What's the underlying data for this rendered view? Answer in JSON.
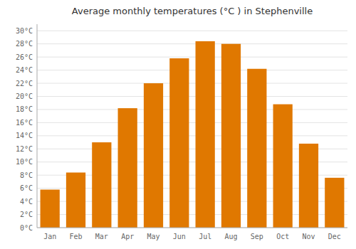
{
  "chart_data": {
    "type": "bar",
    "title": "Average monthly temperatures (°C ) in Stephenville",
    "categories": [
      "Jan",
      "Feb",
      "Mar",
      "Apr",
      "May",
      "Jun",
      "Jul",
      "Aug",
      "Sep",
      "Oct",
      "Nov",
      "Dec"
    ],
    "values": [
      5.8,
      8.4,
      13.0,
      18.2,
      22.0,
      25.8,
      28.4,
      28.0,
      24.2,
      18.8,
      12.8,
      7.6
    ],
    "color": "#E07800",
    "ylim": [
      0,
      31
    ],
    "yticks": [
      {
        "value": 0,
        "label": "0°C"
      },
      {
        "value": 2,
        "label": "2°C"
      },
      {
        "value": 4,
        "label": "4°C"
      },
      {
        "value": 6,
        "label": "6°C"
      },
      {
        "value": 8,
        "label": "8°C"
      },
      {
        "value": 10,
        "label": "10°C"
      },
      {
        "value": 12,
        "label": "12°C"
      },
      {
        "value": 14,
        "label": "14°C"
      },
      {
        "value": 16,
        "label": "16°C"
      },
      {
        "value": 18,
        "label": "18°C"
      },
      {
        "value": 20,
        "label": "20°C"
      },
      {
        "value": 22,
        "label": "22°C"
      },
      {
        "value": 24,
        "label": "24°C"
      },
      {
        "value": 26,
        "label": "26°C"
      },
      {
        "value": 28,
        "label": "28°C"
      },
      {
        "value": 30,
        "label": "30°C"
      }
    ],
    "grid": true
  }
}
